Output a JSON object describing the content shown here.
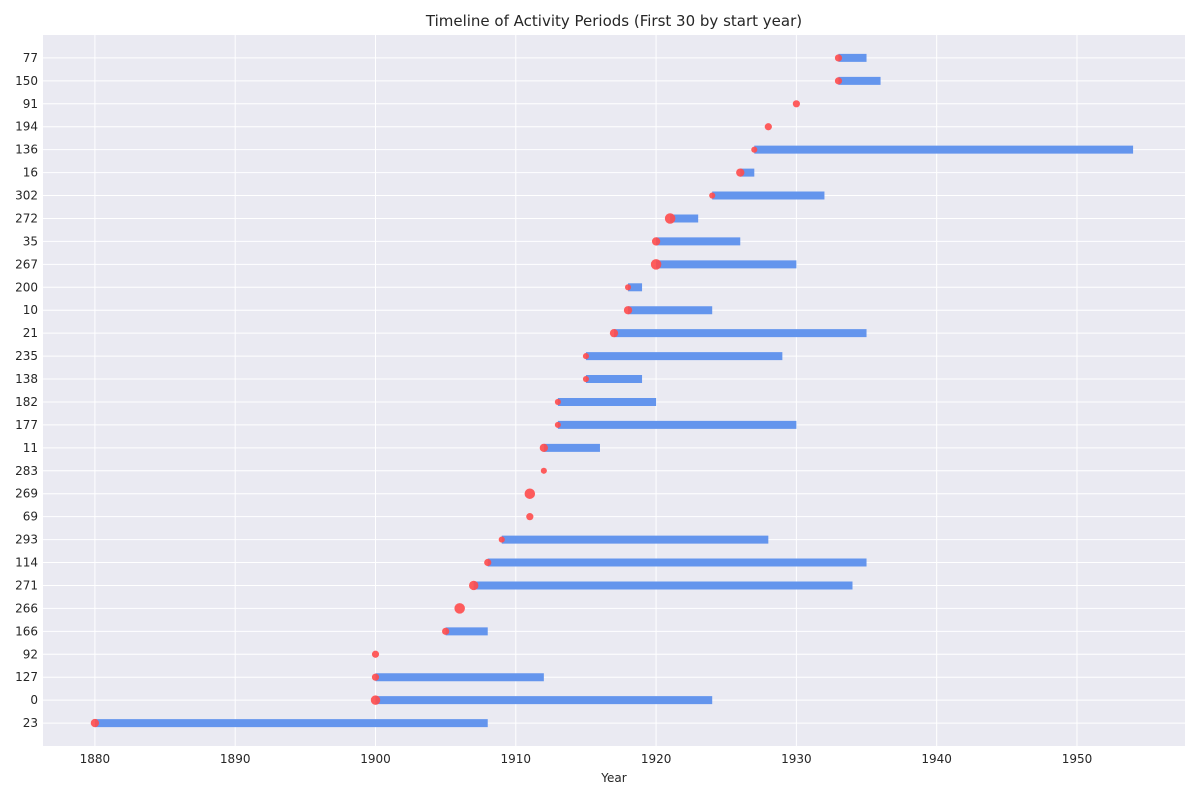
{
  "chart_data": {
    "type": "timeline",
    "title": "Timeline of Activity Periods (First 30 by start year)",
    "xlabel": "Year",
    "ylabel": "",
    "xlim": [
      1876.3,
      1957.7
    ],
    "xticks": [
      1880,
      1890,
      1900,
      1910,
      1920,
      1930,
      1940,
      1950
    ],
    "grid": true,
    "colors": {
      "bar": "#6495ED",
      "dot": "#FF4B4B",
      "background": "#EAEAF2",
      "grid": "#FFFFFF"
    },
    "rows": [
      {
        "label": "23",
        "start": 1880,
        "end": 1908,
        "marker": 3
      },
      {
        "label": "0",
        "start": 1900,
        "end": 1924,
        "marker": 4
      },
      {
        "label": "127",
        "start": 1900,
        "end": 1912,
        "marker": 2
      },
      {
        "label": "92",
        "start": 1900,
        "end": 1900,
        "marker": 2
      },
      {
        "label": "166",
        "start": 1905,
        "end": 1908,
        "marker": 2
      },
      {
        "label": "266",
        "start": 1906,
        "end": 1906,
        "marker": 5
      },
      {
        "label": "271",
        "start": 1907,
        "end": 1934,
        "marker": 4
      },
      {
        "label": "114",
        "start": 1908,
        "end": 1935,
        "marker": 2
      },
      {
        "label": "293",
        "start": 1909,
        "end": 1928,
        "marker": 1
      },
      {
        "label": "69",
        "start": 1911,
        "end": 1911,
        "marker": 2
      },
      {
        "label": "269",
        "start": 1911,
        "end": 1911,
        "marker": 5
      },
      {
        "label": "283",
        "start": 1912,
        "end": 1912,
        "marker": 1
      },
      {
        "label": "11",
        "start": 1912,
        "end": 1916,
        "marker": 3
      },
      {
        "label": "177",
        "start": 1913,
        "end": 1930,
        "marker": 1
      },
      {
        "label": "182",
        "start": 1913,
        "end": 1920,
        "marker": 1
      },
      {
        "label": "138",
        "start": 1915,
        "end": 1919,
        "marker": 1
      },
      {
        "label": "235",
        "start": 1915,
        "end": 1929,
        "marker": 1
      },
      {
        "label": "21",
        "start": 1917,
        "end": 1935,
        "marker": 3
      },
      {
        "label": "10",
        "start": 1918,
        "end": 1924,
        "marker": 3
      },
      {
        "label": "200",
        "start": 1918,
        "end": 1919,
        "marker": 1
      },
      {
        "label": "267",
        "start": 1920,
        "end": 1930,
        "marker": 5
      },
      {
        "label": "35",
        "start": 1920,
        "end": 1926,
        "marker": 3
      },
      {
        "label": "272",
        "start": 1921,
        "end": 1923,
        "marker": 5
      },
      {
        "label": "302",
        "start": 1924,
        "end": 1932,
        "marker": 1
      },
      {
        "label": "16",
        "start": 1926,
        "end": 1927,
        "marker": 3
      },
      {
        "label": "136",
        "start": 1927,
        "end": 1954,
        "marker": 1
      },
      {
        "label": "194",
        "start": 1928,
        "end": 1928,
        "marker": 2
      },
      {
        "label": "91",
        "start": 1930,
        "end": 1930,
        "marker": 2
      },
      {
        "label": "150",
        "start": 1933,
        "end": 1936,
        "marker": 2
      },
      {
        "label": "77",
        "start": 1933,
        "end": 1935,
        "marker": 2
      }
    ]
  }
}
